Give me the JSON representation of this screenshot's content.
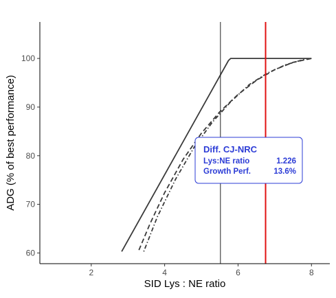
{
  "chart_data": {
    "type": "line",
    "title": "",
    "xlabel": "SID Lys : NE ratio",
    "ylabel": "ADG (% of best performance)",
    "xlim": [
      0.6,
      8.5
    ],
    "ylim": [
      57.8,
      107.5
    ],
    "xticks": [
      2,
      4,
      6,
      8
    ],
    "yticks": [
      60,
      70,
      80,
      90,
      100
    ],
    "grid": false,
    "legend": "none",
    "series": [
      {
        "style": "solid",
        "color": "#3a3a3a",
        "x": [
          2.83,
          5.74,
          5.8,
          8.0
        ],
        "y": [
          60.3,
          99.6,
          100.0,
          100.0
        ]
      },
      {
        "style": "dashed",
        "color": "#3a3a3a",
        "x": [
          3.3,
          3.6,
          4.0,
          4.5,
          5.0,
          5.5,
          6.0,
          6.5,
          7.0,
          7.5,
          8.0
        ],
        "y": [
          60.6,
          66.0,
          72.4,
          79.2,
          84.6,
          89.0,
          92.6,
          95.5,
          97.7,
          99.2,
          100.0
        ]
      },
      {
        "style": "dotdash",
        "color": "#3a3a3a",
        "x": [
          3.43,
          3.8,
          4.3,
          4.8,
          5.3,
          5.8,
          6.3,
          6.8,
          7.3,
          7.8,
          8.0
        ],
        "y": [
          60.3,
          67.4,
          75.2,
          81.7,
          86.9,
          91.1,
          94.6,
          97.0,
          98.7,
          99.8,
          100.0
        ]
      }
    ],
    "vlines": [
      {
        "x": 5.52,
        "color": "#222222"
      },
      {
        "x": 6.75,
        "color": "#e01010"
      }
    ],
    "annotation": {
      "title": "Diff. CJ-NRC",
      "rows": [
        {
          "label": "Lys:NE ratio",
          "value": "1.226"
        },
        {
          "label": "Growth Perf.",
          "value": "13.6%"
        }
      ],
      "color": "#2b3bd6",
      "anchor_x": 5.1,
      "anchor_y": 82.9
    }
  }
}
